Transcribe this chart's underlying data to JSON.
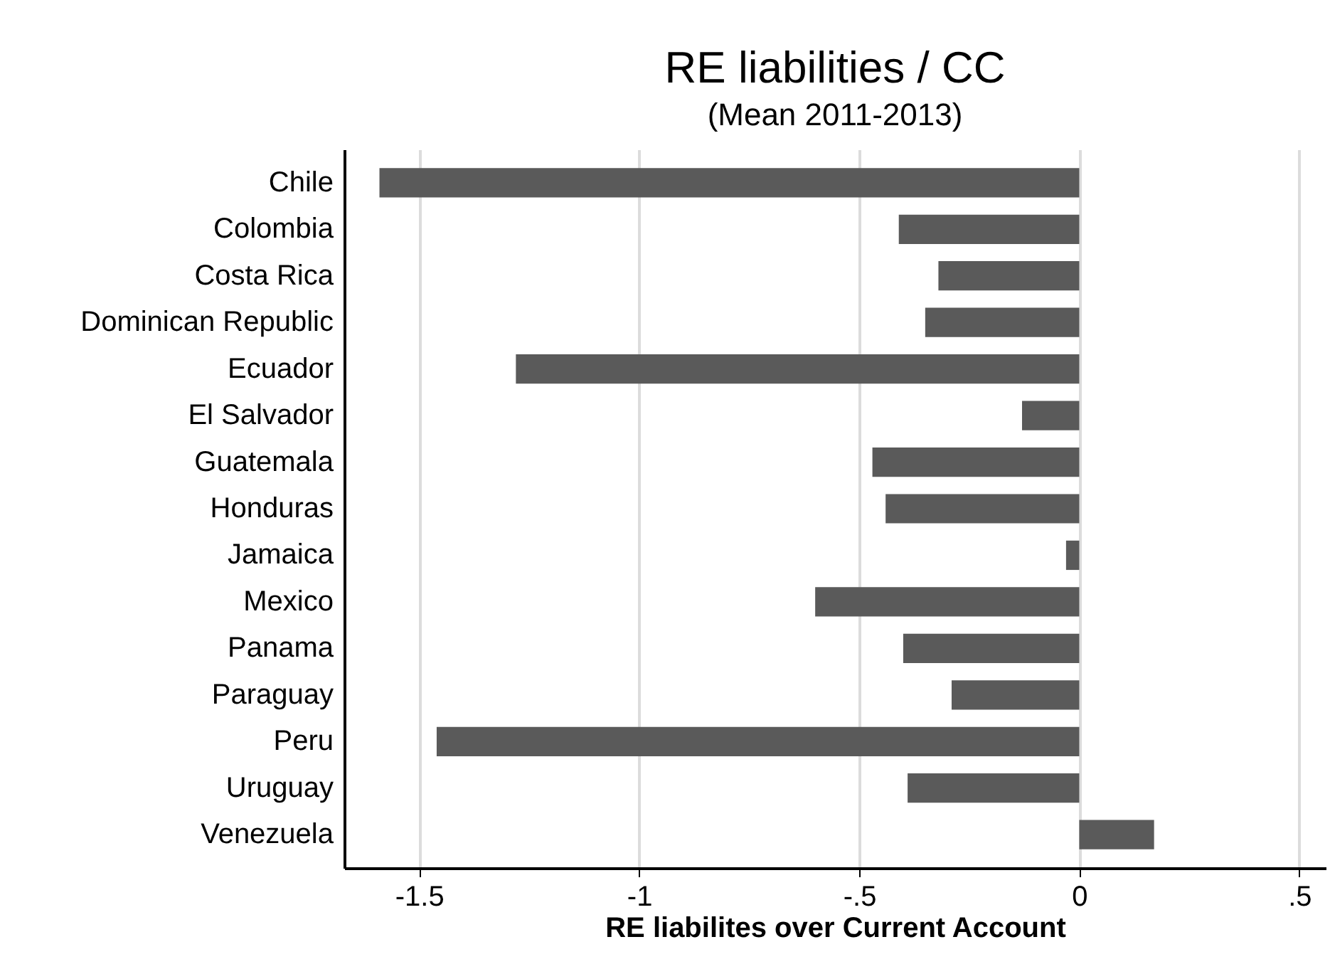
{
  "chart_data": {
    "type": "bar",
    "orientation": "horizontal",
    "title": "RE liabilities / CC",
    "subtitle": "(Mean 2011-2013)",
    "xlabel": "RE liabilites over Current Account",
    "categories": [
      "Chile",
      "Colombia",
      "Costa Rica",
      "Dominican Republic",
      "Ecuador",
      "El Salvador",
      "Guatemala",
      "Honduras",
      "Jamaica",
      "Mexico",
      "Panama",
      "Paraguay",
      "Peru",
      "Uruguay",
      "Venezuela"
    ],
    "values": [
      -1.59,
      -0.41,
      -0.32,
      -0.35,
      -1.28,
      -0.13,
      -0.47,
      -0.44,
      -0.03,
      -0.6,
      -0.4,
      -0.29,
      -1.46,
      -0.39,
      0.17
    ],
    "color": "#5a5a5a",
    "xlim": [
      -1.67,
      0.56
    ],
    "xticks": [
      -1.5,
      -1,
      {
        "value": -0.5,
        "label": "-.5"
      },
      0,
      {
        "value": 0.5,
        "label": ".5"
      }
    ],
    "grid": "x"
  }
}
